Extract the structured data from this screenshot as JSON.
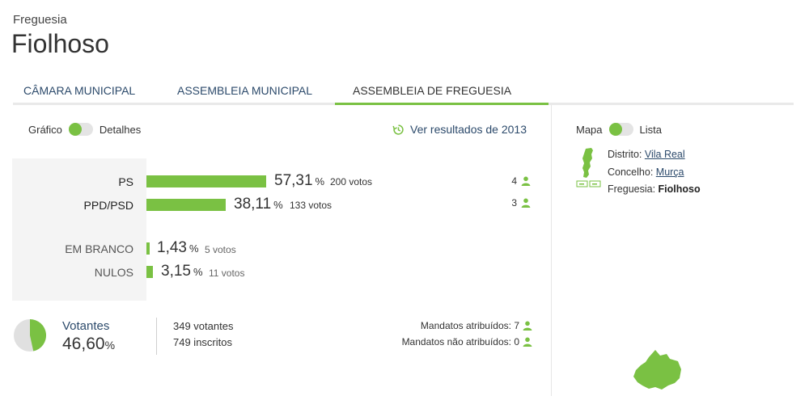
{
  "header": {
    "kicker": "Freguesia",
    "title": "Fiolhoso"
  },
  "tabs": [
    {
      "label": "CÂMARA MUNICIPAL",
      "active": false
    },
    {
      "label": "ASSEMBLEIA MUNICIPAL",
      "active": false
    },
    {
      "label": "ASSEMBLEIA DE FREGUESIA",
      "active": true
    }
  ],
  "view_toggle": {
    "left_label": "Gráfico",
    "right_label": "Detalhes"
  },
  "previous_results": {
    "label": "Ver resultados de 2013",
    "icon": "history-icon"
  },
  "results": [
    {
      "party": "PS",
      "percent": "57,31",
      "percent_symbol": "%",
      "votes": "200 votos",
      "seats": "4",
      "share": 0.5731
    },
    {
      "party": "PPD/PSD",
      "percent": "38,11",
      "percent_symbol": "%",
      "votes": "133 votos",
      "seats": "3",
      "share": 0.3811
    }
  ],
  "other_votes": [
    {
      "label": "EM BRANCO",
      "percent": "1,43",
      "percent_symbol": "%",
      "votes": "5 votos",
      "share": 0.0143
    },
    {
      "label": "NULOS",
      "percent": "3,15",
      "percent_symbol": "%",
      "votes": "11 votos",
      "share": 0.0315
    }
  ],
  "turnout": {
    "label": "Votantes",
    "percent": "46,60",
    "percent_symbol": "%",
    "share": 0.466,
    "voters": "349 votantes",
    "registered": "749 inscritos",
    "mandates_assigned": "Mandatos atribuídos: 7",
    "mandates_unassigned": "Mandatos não atribuídos: 0"
  },
  "map_toggle": {
    "left_label": "Mapa",
    "right_label": "Lista"
  },
  "location": {
    "district_label": "Distrito:",
    "district": "Vila Real",
    "municipality_label": "Concelho:",
    "municipality": "Murça",
    "parish_label": "Freguesia:",
    "parish": "Fiolhoso"
  },
  "colors": {
    "accent": "#7ac143",
    "link": "#2c4a6b",
    "panel": "#f4f4f4",
    "pie_rest": "#e0e0e0"
  }
}
